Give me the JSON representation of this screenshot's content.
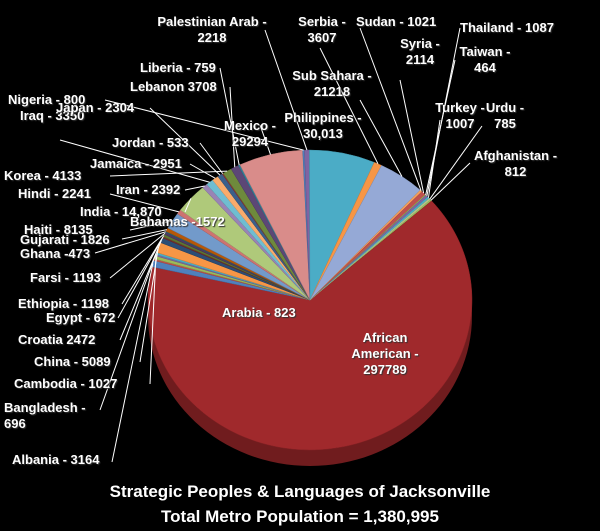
{
  "chart_data": {
    "type": "pie3d",
    "title": "Strategic Peoples & Languages of Jacksonville",
    "subtitle": "Total Metro Population = 1,380,995",
    "categories": [
      "Afghanistan - 812",
      "African American - 297789",
      "Albania - 3164",
      "Arabia - 823",
      "Bahamas -1572",
      "Bangladesh - 696",
      "Cambodia - 1027",
      "China - 5089",
      "Croatia 2472",
      "Egypt - 672",
      "Ethiopia - 1198",
      "Farsi - 1193",
      "Ghana -473",
      "Gujarati - 1826",
      "Haiti - 8135",
      "Hindi - 2241",
      "India - 14,870",
      "Iran - 2392",
      "Iraq - 3350",
      "Jamaica - 2951",
      "Japan - 2304",
      "Jordan - 533",
      "Korea - 4133",
      "Lebanon 3708",
      "Liberia - 759",
      "Mexico - 29294",
      "Nigeria - 800",
      "Palestinian Arab - 2218",
      "Philippines - 30,013",
      "Serbia - 3607",
      "Sub Sahara - 21218",
      "Sudan - 1021",
      "Syria - 2114",
      "Taiwan - 464",
      "Thailand - 1087",
      "Turkey - 1007",
      "Urdu - 785"
    ],
    "values": [
      812,
      297789,
      3164,
      823,
      1572,
      696,
      1027,
      5089,
      2472,
      672,
      1198,
      1193,
      473,
      1826,
      8135,
      2241,
      14870,
      2392,
      3350,
      2951,
      2304,
      533,
      4133,
      3708,
      759,
      29294,
      800,
      2218,
      30013,
      3607,
      21218,
      1021,
      2114,
      464,
      1087,
      1007,
      785
    ],
    "colors": [
      "#9bbb59",
      "#a0292c",
      "#4f81bd",
      "#c0504d",
      "#9bbb59",
      "#8064a2",
      "#4bacc6",
      "#f79646",
      "#2c4d75",
      "#772c2a",
      "#5f7530",
      "#4d3b62",
      "#276a7c",
      "#b65708",
      "#729aca",
      "#cd7371",
      "#afc97a",
      "#9983b5",
      "#6fbdd1",
      "#f9ab6b",
      "#3a5f8b",
      "#8e3634",
      "#6e8a3c",
      "#5c4776",
      "#2f8198",
      "#d98c8a",
      "#4f81bd",
      "#8064a2",
      "#4bacc6",
      "#f79646",
      "#95a9d6",
      "#f5a05c",
      "#c0504d",
      "#9bbb59",
      "#8064a2",
      "#4bacc6",
      "#b7c98a"
    ]
  }
}
